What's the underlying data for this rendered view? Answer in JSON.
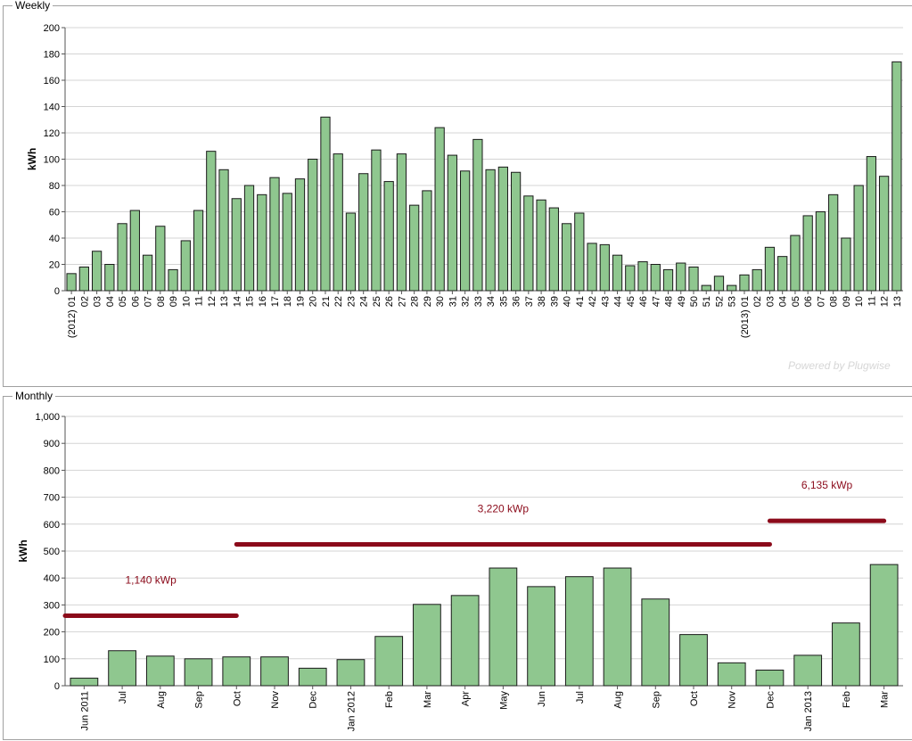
{
  "panels": {
    "weekly_title": "Weekly",
    "monthly_title": "Monthly",
    "watermark": "Powered by Plugwise"
  },
  "colors": {
    "bar_fill": "#8fc78f",
    "bar_stroke": "#1a1a1a",
    "grid": "#d4d4d4",
    "annotation": "#8b0a1a"
  },
  "chart_data": [
    {
      "type": "bar",
      "title": "Weekly",
      "ylabel": "kWh",
      "ylim": [
        0,
        200
      ],
      "yticks": [
        "0",
        "20",
        "40",
        "60",
        "80",
        "100",
        "120",
        "140",
        "160",
        "180",
        "200"
      ],
      "grid": true,
      "categories": [
        "(2012) 01",
        "02",
        "03",
        "04",
        "05",
        "06",
        "07",
        "08",
        "09",
        "10",
        "11",
        "12",
        "13",
        "14",
        "15",
        "16",
        "17",
        "18",
        "19",
        "20",
        "21",
        "22",
        "23",
        "24",
        "25",
        "26",
        "27",
        "28",
        "29",
        "30",
        "31",
        "32",
        "33",
        "34",
        "35",
        "36",
        "37",
        "38",
        "39",
        "40",
        "41",
        "42",
        "43",
        "44",
        "45",
        "46",
        "47",
        "48",
        "49",
        "50",
        "51",
        "52",
        "53",
        "(2013) 01",
        "02",
        "03",
        "04",
        "05",
        "06",
        "07",
        "08",
        "09",
        "10",
        "11",
        "12",
        "13"
      ],
      "values": [
        13,
        18,
        30,
        20,
        51,
        61,
        27,
        49,
        16,
        38,
        61,
        106,
        92,
        70,
        80,
        73,
        86,
        74,
        85,
        100,
        132,
        104,
        59,
        89,
        107,
        83,
        104,
        65,
        76,
        124,
        103,
        91,
        115,
        92,
        94,
        90,
        72,
        69,
        63,
        51,
        59,
        36,
        35,
        27,
        19,
        22,
        20,
        16,
        21,
        18,
        4,
        11,
        4,
        12,
        16,
        33,
        26,
        42,
        57,
        60,
        73,
        40,
        80,
        102,
        87,
        174
      ]
    },
    {
      "type": "bar",
      "title": "Monthly",
      "ylabel": "kWh",
      "ylim": [
        0,
        1000
      ],
      "yticks": [
        "0",
        "100",
        "200",
        "300",
        "400",
        "500",
        "600",
        "700",
        "800",
        "900",
        "1,000"
      ],
      "grid": true,
      "categories": [
        "Jun 2011",
        "Jul",
        "Aug",
        "Sep",
        "Oct",
        "Nov",
        "Dec",
        "Jan 2012",
        "Feb",
        "Mar",
        "Apr",
        "May",
        "Jun",
        "Jul",
        "Aug",
        "Sep",
        "Oct",
        "Nov",
        "Dec",
        "Jan 2013",
        "Feb",
        "Mar"
      ],
      "values": [
        28,
        130,
        110,
        100,
        107,
        107,
        65,
        97,
        183,
        302,
        335,
        437,
        368,
        405,
        437,
        322,
        190,
        85,
        58,
        113,
        233,
        450
      ],
      "annotations": [
        {
          "label": "1,140 kWp",
          "value": 260,
          "from_index": 0,
          "to_index": 4.5
        },
        {
          "label": "3,220 kWp",
          "value": 525,
          "from_index": 4.5,
          "to_index": 18.5
        },
        {
          "label": "6,135 kWp",
          "value": 612,
          "from_index": 18.5,
          "to_index": 21.5
        }
      ]
    }
  ]
}
